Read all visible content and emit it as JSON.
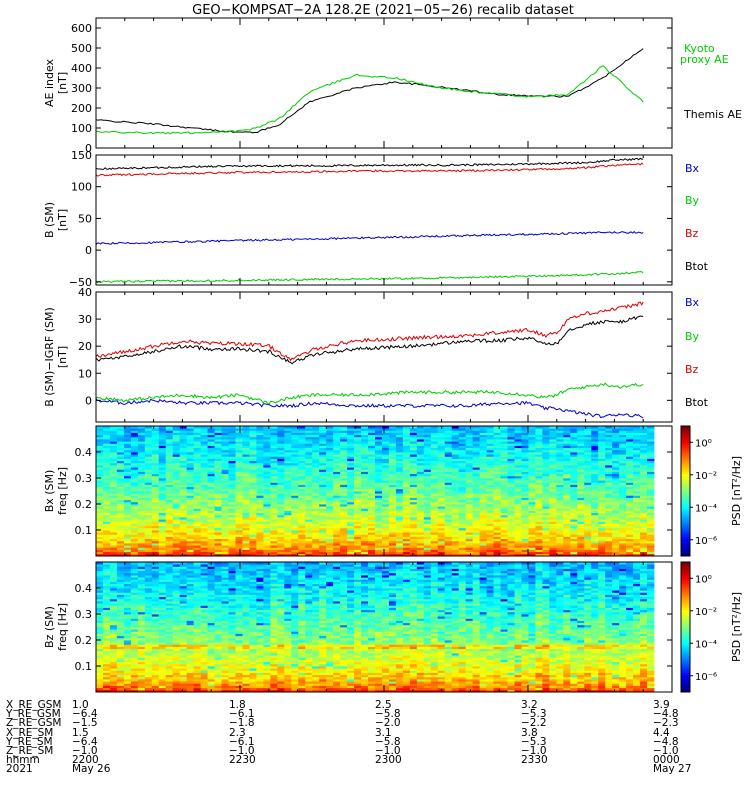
{
  "title": "GEO−KOMPSAT−2A 128.2E (2021−05−26) recalib dataset",
  "colors": {
    "black": "#000000",
    "red": "#e00000",
    "green": "#00cc00",
    "blue": "#0000d0",
    "kyoto": "#00cc00"
  },
  "chart_data": [
    {
      "type": "line",
      "ylabel": "AE index",
      "yunit": "[nT]",
      "ylim": [
        0,
        650
      ],
      "yticks": [
        "0",
        "100",
        "200",
        "300",
        "400",
        "500",
        "600"
      ],
      "x": [
        0,
        5,
        10,
        15,
        20,
        25,
        28,
        32,
        37,
        45,
        52,
        58,
        64,
        70,
        76,
        82,
        88,
        95
      ],
      "series": [
        {
          "name": "Themis AE",
          "color": "#000000",
          "values": [
            140,
            130,
            120,
            105,
            90,
            78,
            80,
            120,
            230,
            300,
            330,
            310,
            290,
            268,
            260,
            258,
            350,
            500
          ]
        },
        {
          "name": "Kyoto proxy AE",
          "color": "#00cc00",
          "values": [
            80,
            80,
            75,
            75,
            80,
            85,
            100,
            150,
            280,
            365,
            350,
            310,
            285,
            270,
            255,
            268,
            410,
            230
          ]
        }
      ],
      "legend": [
        "Kyoto",
        "proxy AE",
        "Themis AE"
      ]
    },
    {
      "type": "line",
      "ylabel": "B (SM)",
      "yunit": "[nT]",
      "ylim": [
        -55,
        150
      ],
      "yticks": [
        "−50",
        "0",
        "50",
        "100",
        "150"
      ],
      "x": [
        0,
        10,
        20,
        30,
        40,
        50,
        60,
        70,
        80,
        85,
        90,
        95
      ],
      "series": [
        {
          "name": "Bx",
          "color": "#0000d0",
          "values": [
            10,
            12,
            14,
            16,
            18,
            20,
            22,
            24,
            26,
            27,
            28,
            28
          ]
        },
        {
          "name": "By",
          "color": "#00cc00",
          "values": [
            -50,
            -49,
            -48,
            -47,
            -46,
            -45,
            -44,
            -42,
            -40,
            -39,
            -37,
            -35
          ]
        },
        {
          "name": "Bz",
          "color": "#e00000",
          "values": [
            118,
            120,
            122,
            123,
            124,
            125,
            125,
            126,
            128,
            130,
            134,
            136
          ]
        },
        {
          "name": "Btot",
          "color": "#000000",
          "values": [
            128,
            130,
            132,
            133,
            133,
            134,
            134,
            135,
            137,
            138,
            142,
            144
          ]
        }
      ],
      "legend": [
        "Bx",
        "By",
        "Bz",
        "Btot"
      ]
    },
    {
      "type": "line",
      "ylabel": "B (SM)−IGRF (SM)",
      "yunit": "[nT]",
      "ylim": [
        -8,
        40
      ],
      "yticks": [
        "0",
        "10",
        "20",
        "30",
        "40"
      ],
      "x": [
        0,
        5,
        10,
        15,
        20,
        25,
        30,
        34,
        38,
        45,
        55,
        65,
        70,
        75,
        78,
        80,
        82,
        85,
        88,
        91,
        95
      ],
      "series": [
        {
          "name": "Bx",
          "color": "#0000d0",
          "values": [
            0,
            -1,
            0,
            -1,
            -1,
            -1,
            -2,
            -2,
            -1,
            -2,
            -2,
            -2,
            -1,
            -1,
            -3,
            -3,
            -4,
            -5,
            -6,
            -5,
            -6
          ]
        },
        {
          "name": "By",
          "color": "#00cc00",
          "values": [
            1,
            0,
            1,
            2,
            1,
            2,
            -1,
            1,
            2,
            2,
            3,
            3,
            3,
            2,
            1,
            2,
            4,
            5,
            6,
            5,
            6
          ]
        },
        {
          "name": "Bz",
          "color": "#e00000",
          "values": [
            16,
            18,
            20,
            22,
            21,
            21,
            20,
            15,
            19,
            22,
            23,
            24,
            25,
            26,
            24,
            25,
            30,
            32,
            33,
            34,
            36
          ]
        },
        {
          "name": "Btot",
          "color": "#000000",
          "values": [
            15,
            16,
            18,
            20,
            19,
            19,
            18,
            14,
            17,
            19,
            20,
            22,
            22,
            23,
            21,
            21,
            26,
            28,
            29,
            29,
            31
          ]
        }
      ],
      "legend": [
        "Bx",
        "By",
        "Bz",
        "Btot"
      ]
    },
    {
      "type": "heatmap",
      "ylabel": "Bx (SM)",
      "yunit": "freq [Hz]",
      "ylim": [
        0,
        0.5
      ],
      "yticks": [
        "0.1",
        "0.2",
        "0.3",
        "0.4"
      ],
      "colorbar": {
        "label": "PSD [nT²/Hz]",
        "ticks": [
          "10⁰",
          "10⁻²",
          "10⁻⁴",
          "10⁻⁶"
        ],
        "range": [
          -7,
          1
        ]
      }
    },
    {
      "type": "heatmap",
      "ylabel": "Bz (SM)",
      "yunit": "freq [Hz]",
      "ylim": [
        0,
        0.5
      ],
      "yticks": [
        "0.1",
        "0.2",
        "0.3",
        "0.4"
      ],
      "colorbar": {
        "label": "PSD [nT²/Hz]",
        "ticks": [
          "10⁰",
          "10⁻²",
          "10⁻⁴",
          "10⁻⁶"
        ],
        "range": [
          -7,
          1
        ]
      }
    }
  ],
  "orbit": {
    "labels": [
      "X_RE_GSM",
      "Y_RE_GSM",
      "Z_RE_GSM",
      "X_RE_SM",
      "Y_RE_SM",
      "Z_RE_SM",
      "hhmm",
      "2021"
    ],
    "columns": [
      {
        "values": [
          "1.0",
          "−6.4",
          "−1.5",
          "1.5",
          "−6.4",
          "−1.0",
          "2200",
          "May 26"
        ]
      },
      {
        "values": [
          "1.8",
          "−6.1",
          "−1.8",
          "2.3",
          "−6.1",
          "−1.0",
          "2230",
          ""
        ]
      },
      {
        "values": [
          "2.5",
          "−5.8",
          "−2.0",
          "3.1",
          "−5.8",
          "−1.0",
          "2300",
          ""
        ]
      },
      {
        "values": [
          "3.2",
          "−5.3",
          "−2.2",
          "3.8",
          "−5.3",
          "−1.0",
          "2330",
          ""
        ]
      },
      {
        "values": [
          "3.9",
          "−4.8",
          "−2.3",
          "4.4",
          "−4.8",
          "−1.0",
          "0000",
          "May 27"
        ]
      }
    ]
  }
}
